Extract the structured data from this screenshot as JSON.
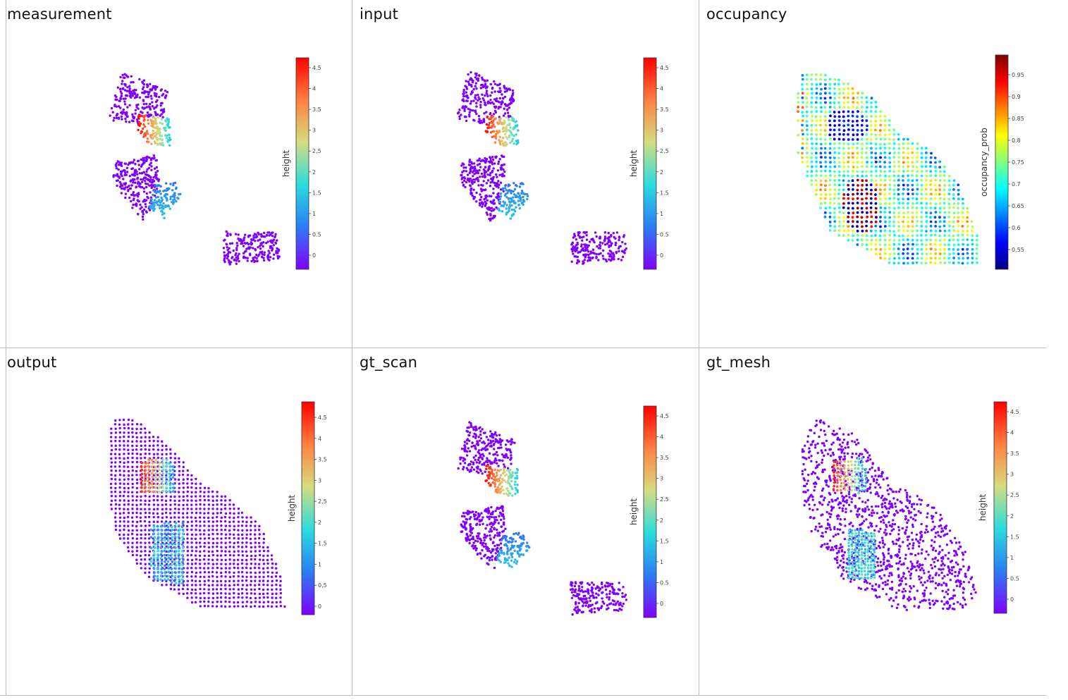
{
  "panels": [
    {
      "title": "measurement",
      "kind": "scan",
      "colorbar": {
        "label": "height",
        "scale": "rainbow",
        "ticks": [
          "4.5",
          "4",
          "3.5",
          "3",
          "2.5",
          "2",
          "1.5",
          "1",
          "0.5",
          "0"
        ]
      }
    },
    {
      "title": "input",
      "kind": "scan",
      "colorbar": {
        "label": "height",
        "scale": "rainbow",
        "ticks": [
          "4.5",
          "4",
          "3.5",
          "3",
          "2.5",
          "2",
          "1.5",
          "1",
          "0.5",
          "0"
        ]
      }
    },
    {
      "title": "occupancy",
      "kind": "occupancy",
      "colorbar": {
        "label": "occupancy_prob",
        "scale": "jet",
        "ticks": [
          "0.95",
          "0.9",
          "0.85",
          "0.8",
          "0.75",
          "0.7",
          "0.65",
          "0.6",
          "0.55"
        ]
      }
    },
    {
      "title": "output",
      "kind": "output",
      "colorbar": {
        "label": "height",
        "scale": "rainbow",
        "ticks": [
          "4.5",
          "4",
          "3.5",
          "3",
          "2.5",
          "2",
          "1.5",
          "1",
          "0.5",
          "0"
        ]
      }
    },
    {
      "title": "gt_scan",
      "kind": "scan",
      "colorbar": {
        "label": "height",
        "scale": "rainbow",
        "ticks": [
          "4.5",
          "4",
          "3.5",
          "3",
          "2.5",
          "2",
          "1.5",
          "1",
          "0.5",
          "0"
        ]
      }
    },
    {
      "title": "gt_mesh",
      "kind": "mesh",
      "colorbar": {
        "label": "height",
        "scale": "rainbow",
        "ticks": [
          "4.5",
          "4",
          "3.5",
          "3",
          "2.5",
          "2",
          "1.5",
          "1",
          "0.5",
          "0"
        ]
      }
    }
  ],
  "colors": {
    "rainbow": [
      "#8000ff",
      "#2b7df6",
      "#2adddd",
      "#d4dd80",
      "#ff8040",
      "#ff0000"
    ],
    "jet": [
      "#00007f",
      "#0000ff",
      "#0080ff",
      "#00ffff",
      "#80ff80",
      "#ffff00",
      "#ff8000",
      "#ff0000",
      "#7f0000"
    ],
    "divider": "#bdbdbd"
  }
}
